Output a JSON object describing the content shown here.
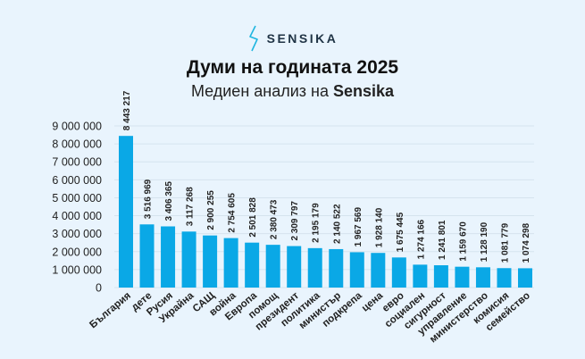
{
  "brand": {
    "name": "SENSIKA",
    "icon": "lightning-bolt-icon",
    "color": "#1fb6e0"
  },
  "header": {
    "title": "Думи на годината 2025",
    "subtitle_prefix": "Медиен анализ на",
    "subtitle_brand": "Sensika"
  },
  "chart_data": {
    "type": "bar",
    "title": "Думи на годината 2025",
    "subtitle": "Медиен анализ на Sensika",
    "categories": [
      "България",
      "дете",
      "Русия",
      "Украйна",
      "САЩ",
      "война",
      "Европа",
      "помощ",
      "президент",
      "политика",
      "министър",
      "подкрепа",
      "цена",
      "евро",
      "социален",
      "сигурност",
      "управление",
      "министерство",
      "комисия",
      "семейство"
    ],
    "values": [
      8443217,
      3516969,
      3406365,
      3117268,
      2900255,
      2754605,
      2501828,
      2380473,
      2309797,
      2195179,
      2140522,
      1967569,
      1928140,
      1675445,
      1274166,
      1241801,
      1159670,
      1128190,
      1081779,
      1074298
    ],
    "data_labels": [
      "8 443 217",
      "3 516 969",
      "3 406 365",
      "3 117 268",
      "2 900 255",
      "2 754 605",
      "2 501 828",
      "2 380 473",
      "2 309 797",
      "2 195 179",
      "2 140 522",
      "1 967 569",
      "1 928 140",
      "1 675 445",
      "1 274 166",
      "1 241 801",
      "1 159 670",
      "1 128 190",
      "1 081 779",
      "1 074 298"
    ],
    "yticks": [
      "0",
      "1 000 000",
      "2 000 000",
      "3 000 000",
      "4 000 000",
      "5 000 000",
      "6 000 000",
      "7 000 000",
      "8 000 000",
      "9 000 000"
    ],
    "ylim": [
      0,
      9000000
    ],
    "xlabel": "",
    "ylabel": "",
    "grid": true,
    "bar_color": "#0aa8e6"
  }
}
